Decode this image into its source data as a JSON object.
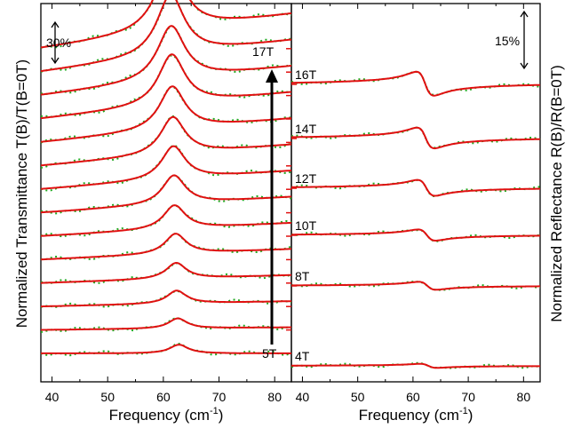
{
  "chart_data": [
    {
      "type": "line",
      "panel": "transmittance",
      "ylabel": "Normalized Transmittance T(B)/T(B=0T)",
      "xlabel": "Frequency (cm",
      "xlabel_superscript": "-1",
      "xlabel_suffix": ")",
      "xlim": [
        38,
        83
      ],
      "xticks": [
        40,
        50,
        60,
        70,
        80
      ],
      "scale_bar": "30%",
      "field_labels": [
        "17T",
        "5T"
      ],
      "arrow": "field increasing upward",
      "series": [
        {
          "offset": 0,
          "center": 62.8,
          "amp": 0.012,
          "width": 2.0
        },
        {
          "offset": 1,
          "center": 62.6,
          "amp": 0.014,
          "width": 2.0
        },
        {
          "offset": 2,
          "center": 62.4,
          "amp": 0.018,
          "width": 2.1
        },
        {
          "offset": 3,
          "center": 62.3,
          "amp": 0.022,
          "width": 2.2
        },
        {
          "offset": 4,
          "center": 62.2,
          "amp": 0.028,
          "width": 2.3
        },
        {
          "offset": 5,
          "center": 62.0,
          "amp": 0.033,
          "width": 2.4
        },
        {
          "offset": 6,
          "center": 61.9,
          "amp": 0.04,
          "width": 2.5
        },
        {
          "offset": 7,
          "center": 61.8,
          "amp": 0.046,
          "width": 2.6
        },
        {
          "offset": 8,
          "center": 61.7,
          "amp": 0.052,
          "width": 2.7
        },
        {
          "offset": 9,
          "center": 61.6,
          "amp": 0.06,
          "width": 2.8
        },
        {
          "offset": 10,
          "center": 61.5,
          "amp": 0.07,
          "width": 2.9
        },
        {
          "offset": 11,
          "center": 61.4,
          "amp": 0.075,
          "width": 3.0
        },
        {
          "offset": 12,
          "center": 61.3,
          "amp": 0.084,
          "width": 3.0
        },
        {
          "offset": 13,
          "center": 61.2,
          "amp": 0.092,
          "width": 3.1
        }
      ]
    },
    {
      "type": "line",
      "panel": "reflectance",
      "ylabel": "Normalized Reflectance R(B)/R(B=0T)",
      "xlabel": "Frequency (cm",
      "xlabel_superscript": "-1",
      "xlabel_suffix": ")",
      "xlim": [
        38,
        83
      ],
      "xticks": [
        40,
        50,
        60,
        70,
        80
      ],
      "scale_bar": "15%",
      "series": [
        {
          "label": "4T",
          "center": 62.8,
          "amp": 0.005
        },
        {
          "label": "8T",
          "center": 62.6,
          "amp": 0.01
        },
        {
          "label": "10T",
          "center": 62.5,
          "amp": 0.014
        },
        {
          "label": "12T",
          "center": 62.4,
          "amp": 0.02
        },
        {
          "label": "14T",
          "center": 62.3,
          "amp": 0.026
        },
        {
          "label": "16T",
          "center": 62.2,
          "amp": 0.03
        }
      ]
    }
  ]
}
